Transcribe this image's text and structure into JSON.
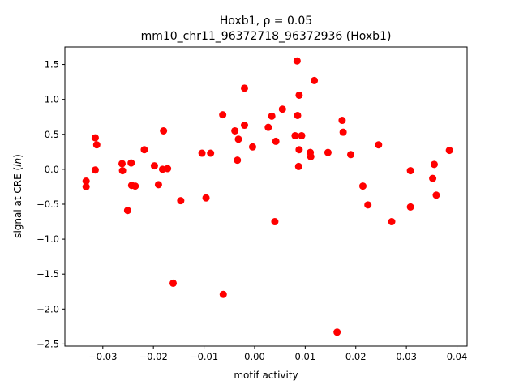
{
  "chart_data": {
    "type": "scatter",
    "title_line1": "Hoxb1, ρ = 0.05",
    "title_line2": "mm10_chr11_96372718_96372936 (Hoxb1)",
    "xlabel": "motif activity",
    "ylabel": "signal at CRE (ln)",
    "xlim": [
      -0.0375,
      0.042
    ],
    "ylim": [
      -2.53,
      1.75
    ],
    "xticks": [
      -0.03,
      -0.02,
      -0.01,
      0.0,
      0.01,
      0.02,
      0.03,
      0.04
    ],
    "xtick_labels": [
      "−0.03",
      "−0.02",
      "−0.01",
      "0.00",
      "0.01",
      "0.02",
      "0.03",
      "0.04"
    ],
    "yticks": [
      -2.5,
      -2.0,
      -1.5,
      -1.0,
      -0.5,
      0.0,
      0.5,
      1.0,
      1.5
    ],
    "ytick_labels": [
      "−2.5",
      "−2.0",
      "−1.5",
      "−1.0",
      "−0.5",
      "0.0",
      "0.5",
      "1.0",
      "1.5"
    ],
    "grid": false,
    "marker_color": "#ff0000",
    "points": [
      {
        "x": -0.0333,
        "y": -0.17
      },
      {
        "x": -0.0333,
        "y": -0.25
      },
      {
        "x": -0.0315,
        "y": 0.45
      },
      {
        "x": -0.0312,
        "y": 0.35
      },
      {
        "x": -0.0315,
        "y": -0.01
      },
      {
        "x": -0.0262,
        "y": 0.08
      },
      {
        "x": -0.0261,
        "y": -0.02
      },
      {
        "x": -0.0251,
        "y": -0.59
      },
      {
        "x": -0.0244,
        "y": 0.09
      },
      {
        "x": -0.0243,
        "y": -0.23
      },
      {
        "x": -0.0236,
        "y": -0.24
      },
      {
        "x": -0.0218,
        "y": 0.28
      },
      {
        "x": -0.0198,
        "y": 0.05
      },
      {
        "x": -0.019,
        "y": -0.22
      },
      {
        "x": -0.0182,
        "y": 0.0
      },
      {
        "x": -0.018,
        "y": 0.55
      },
      {
        "x": -0.0172,
        "y": 0.01
      },
      {
        "x": -0.0161,
        "y": -1.63
      },
      {
        "x": -0.0146,
        "y": -0.45
      },
      {
        "x": -0.0104,
        "y": 0.23
      },
      {
        "x": -0.0096,
        "y": -0.41
      },
      {
        "x": -0.0087,
        "y": 0.23
      },
      {
        "x": -0.0063,
        "y": 0.78
      },
      {
        "x": -0.0062,
        "y": -1.79
      },
      {
        "x": -0.0039,
        "y": 0.55
      },
      {
        "x": -0.0034,
        "y": 0.13
      },
      {
        "x": -0.0032,
        "y": 0.43
      },
      {
        "x": -0.002,
        "y": 1.16
      },
      {
        "x": -0.002,
        "y": 0.63
      },
      {
        "x": -0.0004,
        "y": 0.32
      },
      {
        "x": 0.0027,
        "y": 0.6
      },
      {
        "x": 0.0034,
        "y": 0.76
      },
      {
        "x": 0.004,
        "y": -0.75
      },
      {
        "x": 0.0042,
        "y": 0.4
      },
      {
        "x": 0.0055,
        "y": 0.86
      },
      {
        "x": 0.008,
        "y": 0.48
      },
      {
        "x": 0.0084,
        "y": 1.55
      },
      {
        "x": 0.0085,
        "y": 0.77
      },
      {
        "x": 0.0087,
        "y": 0.04
      },
      {
        "x": 0.0088,
        "y": 1.06
      },
      {
        "x": 0.0088,
        "y": 0.28
      },
      {
        "x": 0.0093,
        "y": 0.48
      },
      {
        "x": 0.011,
        "y": 0.24
      },
      {
        "x": 0.0111,
        "y": 0.18
      },
      {
        "x": 0.0118,
        "y": 1.27
      },
      {
        "x": 0.0145,
        "y": 0.24
      },
      {
        "x": 0.0163,
        "y": -2.33
      },
      {
        "x": 0.0173,
        "y": 0.7
      },
      {
        "x": 0.0175,
        "y": 0.53
      },
      {
        "x": 0.019,
        "y": 0.21
      },
      {
        "x": 0.0214,
        "y": -0.24
      },
      {
        "x": 0.0224,
        "y": -0.51
      },
      {
        "x": 0.0245,
        "y": 0.35
      },
      {
        "x": 0.0271,
        "y": -0.75
      },
      {
        "x": 0.0308,
        "y": -0.02
      },
      {
        "x": 0.0308,
        "y": -0.54
      },
      {
        "x": 0.0352,
        "y": -0.13
      },
      {
        "x": 0.0355,
        "y": 0.07
      },
      {
        "x": 0.0359,
        "y": -0.37
      },
      {
        "x": 0.0385,
        "y": 0.27
      }
    ]
  }
}
